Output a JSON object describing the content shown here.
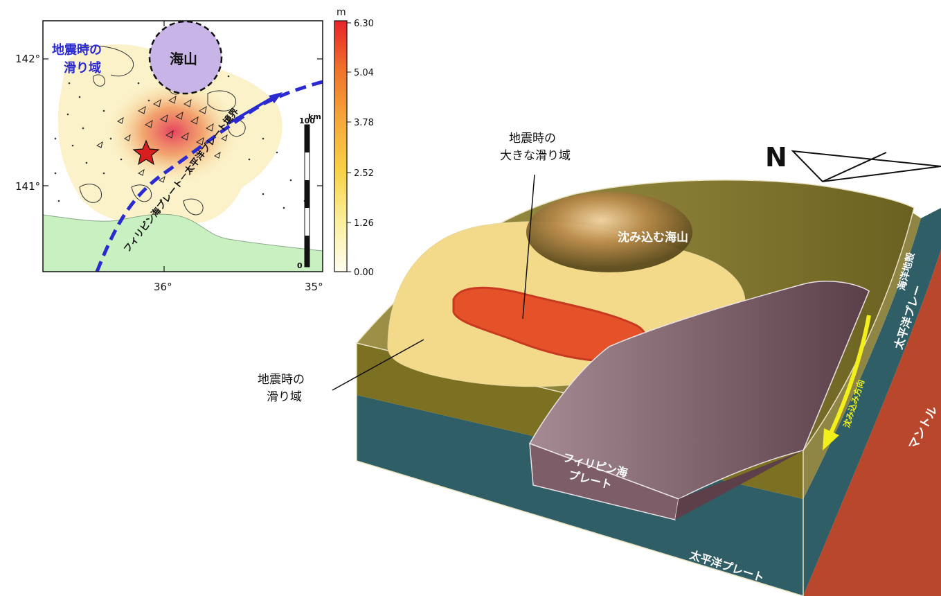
{
  "inset_map": {
    "lat_labels": [
      "142°",
      "141°"
    ],
    "lon_labels": [
      "36°",
      "35°"
    ],
    "slip_area_label": [
      "地震時の",
      "滑り域"
    ],
    "seamount_label": "海山",
    "plate_boundary_label": "フィリピン海プレート－太平洋プレート境界",
    "scale_bar": {
      "unit": "km",
      "top_value": "100",
      "bottom_value": "0"
    },
    "colorbar": {
      "unit": "m",
      "ticks": [
        "6.30",
        "5.04",
        "3.78",
        "2.52",
        "1.26",
        "0.00"
      ],
      "colors": [
        "#e8232a",
        "#f0742b",
        "#f5a93b",
        "#f8d247",
        "#fbef9c",
        "#fffdf0"
      ]
    },
    "colors": {
      "plate_boundary": "#2a2ad0",
      "land": "#c8f0c0",
      "seamount": "#c8b4e6",
      "epicenter": "#d81e1e"
    }
  },
  "block_diagram": {
    "north_label": "N",
    "large_slip_label": [
      "地震時の",
      "大きな滑り域"
    ],
    "slip_area_label": [
      "地震時の",
      "滑り域"
    ],
    "seamount_label": "沈み込む海山",
    "philippine_plate_label": [
      "フィリピン海",
      "プレート"
    ],
    "pacific_plate_label": "太平洋プレート",
    "oceanic_crust_label": "海洋地殻",
    "pacific_plate_side_label": "太平洋プレー",
    "mantle_label": "マントル",
    "subduction_direction_label": "沈み込み方向",
    "colors": {
      "surface": "#8a7f35",
      "layer_top": "#7c7023",
      "layer_bottom": "#2f5e66",
      "large_slip": "#e5522a",
      "slip": "#f3d98a",
      "philippine": "#7d5d68",
      "mantle": "#b8472b",
      "arrow": "#f2f01a"
    }
  }
}
